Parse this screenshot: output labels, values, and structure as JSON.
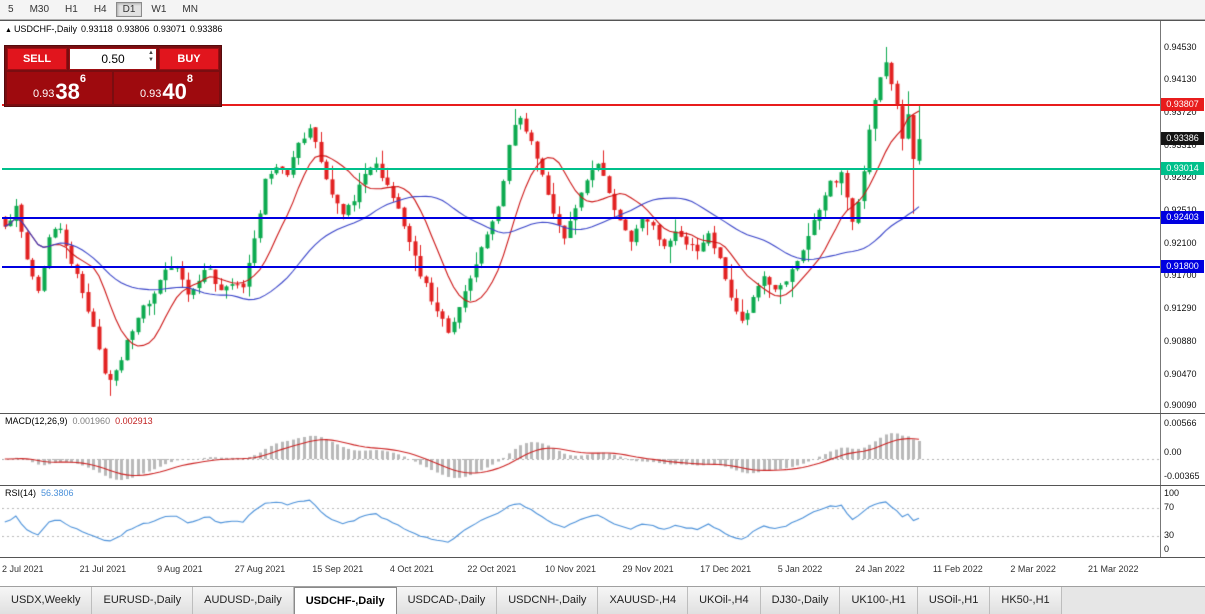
{
  "toolbar": {
    "timeframes": [
      "5",
      "M30",
      "H1",
      "H4",
      "D1",
      "W1",
      "MN"
    ],
    "active": "D1"
  },
  "symbol_header": {
    "marker": "▲",
    "text": "USDCHF-,Daily",
    "open": "0.93118",
    "high": "0.93806",
    "low": "0.93071",
    "close": "0.93386"
  },
  "trade_panel": {
    "sell_label": "SELL",
    "buy_label": "BUY",
    "volume": "0.50",
    "sell_price": {
      "prefix": "0.93",
      "big": "38",
      "sup": "6"
    },
    "buy_price": {
      "prefix": "0.93",
      "big": "40",
      "sup": "8"
    }
  },
  "price_axis": {
    "min": 0.9,
    "max": 0.9484,
    "ticks": [
      "0.94530",
      "0.94130",
      "0.93720",
      "0.93310",
      "0.92920",
      "0.92510",
      "0.92100",
      "0.91700",
      "0.91290",
      "0.90880",
      "0.90470",
      "0.90090"
    ]
  },
  "levels": [
    {
      "price": 0.93807,
      "label": "0.93807",
      "color": "#e81c1c",
      "type": "line"
    },
    {
      "price": 0.93386,
      "label": "0.93386",
      "color": "#141414",
      "type": "current"
    },
    {
      "price": 0.93014,
      "label": "0.93014",
      "color": "#00c08b",
      "type": "line"
    },
    {
      "price": 0.92403,
      "label": "0.92403",
      "color": "#0000e0",
      "type": "line"
    },
    {
      "price": 0.918,
      "label": "0.91800",
      "color": "#0000e0",
      "type": "line"
    }
  ],
  "chart": {
    "type": "candlestick",
    "slots": 209,
    "candles": 166,
    "label_every": 14,
    "dates": [
      "2 Jul 2021",
      "21 Jul 2021",
      "9 Aug 2021",
      "27 Aug 2021",
      "15 Sep 2021",
      "4 Oct 2021",
      "22 Oct 2021",
      "10 Nov 2021",
      "29 Nov 2021",
      "17 Dec 2021",
      "5 Jan 2022",
      "24 Jan 2022",
      "11 Feb 2022",
      "2 Mar 2022",
      "21 Mar 2022"
    ],
    "waypoints": [
      [
        0,
        0.9232
      ],
      [
        2,
        0.9252
      ],
      [
        4,
        0.919
      ],
      [
        6,
        0.915
      ],
      [
        8,
        0.9218
      ],
      [
        10,
        0.9232
      ],
      [
        12,
        0.9186
      ],
      [
        14,
        0.915
      ],
      [
        16,
        0.9106
      ],
      [
        18,
        0.9052
      ],
      [
        19,
        0.9038
      ],
      [
        21,
        0.9068
      ],
      [
        23,
        0.9104
      ],
      [
        25,
        0.913
      ],
      [
        27,
        0.9146
      ],
      [
        29,
        0.9178
      ],
      [
        31,
        0.9182
      ],
      [
        33,
        0.9146
      ],
      [
        35,
        0.9166
      ],
      [
        37,
        0.9178
      ],
      [
        39,
        0.9148
      ],
      [
        41,
        0.916
      ],
      [
        43,
        0.9156
      ],
      [
        45,
        0.9214
      ],
      [
        47,
        0.9286
      ],
      [
        49,
        0.9308
      ],
      [
        51,
        0.9296
      ],
      [
        53,
        0.9336
      ],
      [
        55,
        0.935
      ],
      [
        57,
        0.9314
      ],
      [
        59,
        0.927
      ],
      [
        61,
        0.9242
      ],
      [
        63,
        0.9266
      ],
      [
        65,
        0.9294
      ],
      [
        67,
        0.9304
      ],
      [
        69,
        0.928
      ],
      [
        71,
        0.9254
      ],
      [
        73,
        0.9214
      ],
      [
        75,
        0.9172
      ],
      [
        77,
        0.914
      ],
      [
        79,
        0.9112
      ],
      [
        80,
        0.9098
      ],
      [
        82,
        0.913
      ],
      [
        84,
        0.9166
      ],
      [
        86,
        0.92
      ],
      [
        88,
        0.9234
      ],
      [
        90,
        0.9284
      ],
      [
        91,
        0.9328
      ],
      [
        92,
        0.936
      ],
      [
        93,
        0.9366
      ],
      [
        95,
        0.9334
      ],
      [
        97,
        0.9294
      ],
      [
        99,
        0.925
      ],
      [
        101,
        0.9218
      ],
      [
        103,
        0.9254
      ],
      [
        105,
        0.9288
      ],
      [
        107,
        0.9308
      ],
      [
        109,
        0.9274
      ],
      [
        111,
        0.9234
      ],
      [
        113,
        0.9208
      ],
      [
        115,
        0.9244
      ],
      [
        117,
        0.923
      ],
      [
        119,
        0.9206
      ],
      [
        121,
        0.9228
      ],
      [
        123,
        0.9212
      ],
      [
        125,
        0.9196
      ],
      [
        127,
        0.922
      ],
      [
        129,
        0.9188
      ],
      [
        131,
        0.9146
      ],
      [
        133,
        0.911
      ],
      [
        135,
        0.914
      ],
      [
        137,
        0.917
      ],
      [
        139,
        0.9148
      ],
      [
        141,
        0.9164
      ],
      [
        143,
        0.919
      ],
      [
        145,
        0.9218
      ],
      [
        147,
        0.9252
      ],
      [
        149,
        0.9284
      ],
      [
        151,
        0.9294
      ],
      [
        152,
        0.9268
      ],
      [
        153,
        0.924
      ],
      [
        154,
        0.9262
      ],
      [
        155,
        0.93
      ],
      [
        156,
        0.9346
      ],
      [
        157,
        0.9386
      ],
      [
        158,
        0.9416
      ],
      [
        159,
        0.9436
      ],
      [
        160,
        0.9404
      ],
      [
        161,
        0.9378
      ],
      [
        162,
        0.9342
      ],
      [
        163,
        0.9366
      ],
      [
        164,
        0.9312
      ],
      [
        165,
        0.93386
      ]
    ],
    "overrides": [
      {
        "i": 19,
        "low": 0.902
      },
      {
        "i": 92,
        "high": 0.9376
      },
      {
        "i": 159,
        "high": 0.9453
      },
      {
        "i": 163,
        "high": 0.9398
      },
      {
        "i": 164,
        "low": 0.9246
      }
    ],
    "last_candle": [
      0.93118,
      0.93806,
      0.93071,
      0.93386
    ],
    "noise": 0.0009,
    "wick": 0.0022,
    "seed": 12,
    "up_color": "#0caa4f",
    "down_color": "#e22222",
    "ma_fast": {
      "period": 10,
      "color": "#cc1414"
    },
    "ma_slow": {
      "period": 34,
      "color": "#3742c8"
    }
  },
  "macd": {
    "label": "MACD(12,26,9)",
    "value_main": "0.001960",
    "value_signal": "0.002913",
    "fast": 12,
    "slow": 26,
    "signal": 9,
    "axis": [
      "0.00566",
      "0.00",
      "-0.00365"
    ],
    "hist_color": "#b9b9b9",
    "signal_color": "#cc2222"
  },
  "rsi": {
    "label": "RSI(14)",
    "value": "56.3806",
    "period": 14,
    "axis": [
      "100",
      "70",
      "30",
      "0"
    ],
    "levels": [
      70,
      30
    ],
    "color": "#4a90d9"
  },
  "tabs": {
    "items": [
      "USDX,Weekly",
      "EURUSD-,Daily",
      "AUDUSD-,Daily",
      "USDCHF-,Daily",
      "USDCAD-,Daily",
      "USDCNH-,Daily",
      "XAUUSD-,H4",
      "UKOil-,H4",
      "DJ30-,Daily",
      "UK100-,H1",
      "USOil-,H1",
      "HK50-,H1"
    ],
    "active": "USDCHF-,Daily"
  }
}
